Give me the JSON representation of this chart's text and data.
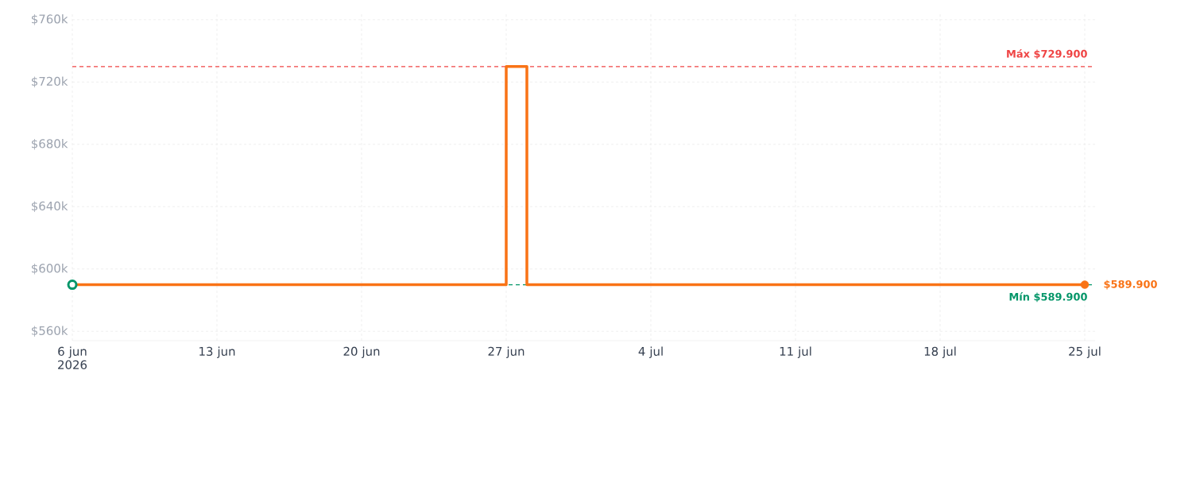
{
  "chart_data": {
    "type": "step",
    "x": [
      "2026-06-06",
      "2026-06-27",
      "2026-06-28",
      "2026-07-25"
    ],
    "series": [
      {
        "color": "#f97316",
        "values": [
          589900,
          729900,
          589900,
          589900
        ],
        "marker": "none"
      },
      {
        "type": "scatter",
        "color": "#059669",
        "x": [
          "2026-06-06"
        ],
        "values": [
          589900
        ],
        "marker": "circle"
      },
      {
        "type": "scatter",
        "color": "#f97316",
        "x": [
          "2026-07-25"
        ],
        "values": [
          589900
        ],
        "marker": "circle"
      }
    ],
    "xlim": [
      "2026-06-06",
      "2026-07-25T12:00"
    ],
    "xticks": [
      {
        "value": "2026-06-06",
        "label": "6 jun 2026"
      },
      {
        "value": "2026-06-13",
        "label": "13 jun"
      },
      {
        "value": "2026-06-20",
        "label": "20 jun"
      },
      {
        "value": "2026-06-27",
        "label": "27 jun"
      },
      {
        "value": "2026-07-04",
        "label": "4 jul"
      },
      {
        "value": "2026-07-11",
        "label": "11 jul"
      },
      {
        "value": "2026-07-18",
        "label": "18 jul"
      },
      {
        "value": "2026-07-25",
        "label": "25 jul"
      }
    ],
    "ylim": [
      554000,
      765000
    ],
    "yticks": [
      {
        "value": 560000,
        "label": "$560k"
      },
      {
        "value": 600000,
        "label": "$600k"
      },
      {
        "value": 640000,
        "label": "$640k"
      },
      {
        "value": 680000,
        "label": "$680k"
      },
      {
        "value": 720000,
        "label": "$720k"
      },
      {
        "value": 760000,
        "label": "$760k"
      }
    ],
    "ref_lines": [
      {
        "axis": "y",
        "value": 729900,
        "label": "Máx $729.900",
        "color": "#ef4444",
        "line_style": "dashed"
      },
      {
        "axis": "y",
        "value": 589900,
        "label": "Mín $589.900",
        "color": "#059669",
        "line_style": "dashed"
      }
    ],
    "annotations": [
      {
        "text": "$589.900",
        "x": "2026-07-25",
        "y": 589900
      }
    ],
    "grid": true
  }
}
